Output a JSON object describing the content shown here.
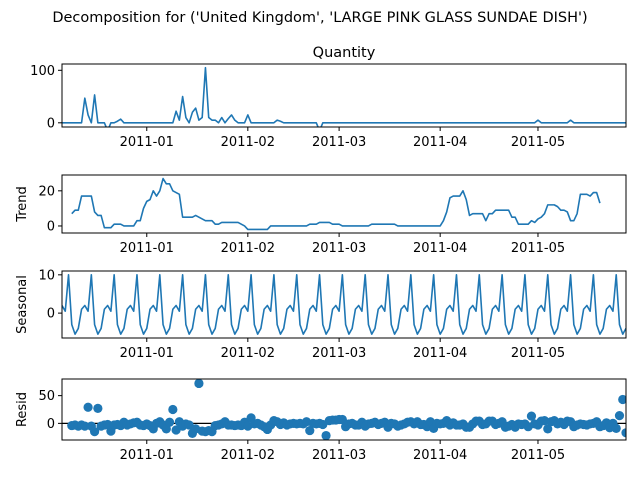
{
  "figure": {
    "title": "Decomposition for ('United Kingdom', 'LARGE PINK GLASS SUNDAE DISH')"
  },
  "colors": {
    "series": "#1f77b4",
    "axis": "#000000",
    "zero_line": "#000000"
  },
  "chart_data": [
    {
      "type": "line",
      "title": "Quantity",
      "ylabel": "",
      "xlim": [
        "2010-12-06",
        "2011-05-28"
      ],
      "ylim": [
        -8,
        112
      ],
      "yticks": [
        0,
        100
      ],
      "xticks": [
        "2011-01",
        "2011-02",
        "2011-03",
        "2011-04",
        "2011-05"
      ],
      "x_start": "2010-12-06",
      "values": [
        0,
        0,
        0,
        0,
        0,
        0,
        0,
        47,
        15,
        0,
        53,
        0,
        0,
        0,
        -15,
        0,
        0,
        3,
        7,
        0,
        0,
        0,
        0,
        0,
        0,
        0,
        0,
        0,
        0,
        0,
        0,
        0,
        0,
        0,
        0,
        22,
        5,
        50,
        10,
        0,
        20,
        28,
        5,
        10,
        105,
        10,
        5,
        5,
        0,
        10,
        0,
        8,
        15,
        5,
        0,
        0,
        0,
        15,
        0,
        0,
        0,
        0,
        0,
        0,
        0,
        0,
        5,
        3,
        0,
        0,
        0,
        0,
        0,
        0,
        0,
        0,
        0,
        0,
        0,
        -15,
        0,
        0,
        0,
        0,
        0,
        0,
        0,
        0,
        0,
        0,
        0,
        0,
        0,
        0,
        0,
        0,
        0,
        0,
        0,
        0,
        0,
        0,
        0,
        0,
        0,
        0,
        0,
        0,
        0,
        0,
        0,
        0,
        0,
        0,
        0,
        0,
        0,
        0,
        0,
        0,
        0,
        0,
        0,
        0,
        0,
        0,
        0,
        0,
        0,
        0,
        0,
        0,
        0,
        0,
        0,
        0,
        0,
        0,
        0,
        0,
        0,
        0,
        0,
        0,
        0,
        0,
        5,
        0,
        0,
        0,
        0,
        0,
        0,
        0,
        0,
        0,
        5,
        0,
        0,
        0,
        0,
        0,
        0,
        0,
        0,
        0,
        0,
        0,
        0,
        0,
        0,
        0,
        0,
        0,
        0,
        0,
        0,
        0,
        0,
        0,
        0,
        0,
        0,
        0,
        0,
        0,
        0,
        0,
        0,
        0,
        0,
        0,
        0,
        0,
        0,
        0,
        0,
        0,
        0,
        0,
        0,
        0,
        0,
        0,
        0,
        0,
        0,
        0,
        0,
        0,
        0,
        0,
        0,
        0,
        0,
        0,
        0,
        0,
        0,
        0,
        0,
        0,
        0,
        0,
        0,
        0,
        0,
        0,
        0,
        0,
        0,
        0,
        0,
        0,
        0,
        0,
        0,
        0,
        0,
        0,
        0,
        0,
        0,
        0,
        0,
        0,
        0,
        0,
        0,
        0,
        0,
        0,
        0,
        0,
        0,
        0,
        0,
        0,
        0,
        0,
        0,
        0,
        0,
        0,
        0,
        0,
        0,
        0,
        0,
        0,
        0,
        0
      ]
    },
    {
      "type": "line",
      "title": "",
      "ylabel": "Trend",
      "xlim": [
        "2010-12-06",
        "2011-05-28"
      ],
      "ylim": [
        -4,
        29
      ],
      "yticks": [
        0,
        20
      ],
      "xticks": [
        "2011-01",
        "2011-02",
        "2011-03",
        "2011-04",
        "2011-05"
      ],
      "x_start": "2010-12-09",
      "values": [
        7,
        9,
        9,
        17,
        17,
        17,
        17,
        8,
        6,
        6,
        -1,
        -1,
        -1,
        1,
        1,
        1,
        0,
        0,
        0,
        0,
        3,
        3,
        10,
        14,
        15,
        20,
        17,
        20,
        27,
        24,
        24,
        20,
        19,
        18,
        5,
        5,
        5,
        5,
        6,
        5,
        4,
        3,
        3,
        3,
        1,
        1,
        2,
        2,
        2,
        2,
        2,
        2,
        1,
        0,
        -2,
        -2,
        -2,
        -2,
        -2,
        -2,
        -2,
        0,
        0,
        0,
        0,
        0,
        0,
        0,
        0,
        0,
        0,
        0,
        0,
        1,
        1,
        1,
        2,
        2,
        2,
        2,
        1,
        1,
        1,
        0,
        0,
        0,
        0,
        0,
        0,
        0,
        0,
        0,
        1,
        1,
        1,
        1,
        1,
        1,
        1,
        1,
        0,
        0,
        0,
        0,
        0,
        0,
        0,
        0,
        0,
        0,
        0,
        0,
        0,
        0,
        3,
        8,
        16,
        17,
        17,
        17,
        20,
        15,
        6,
        7,
        7,
        7,
        7,
        3,
        7,
        7,
        9,
        9,
        9,
        9,
        9,
        5,
        5,
        1,
        1,
        1,
        1,
        3,
        2,
        4,
        5,
        7,
        12,
        12,
        12,
        11,
        9,
        9,
        8,
        3,
        3,
        7,
        18,
        18,
        18,
        17,
        19,
        19,
        13
      ]
    },
    {
      "type": "line",
      "title": "",
      "ylabel": "Seasonal",
      "xlim": [
        "2010-12-06",
        "2011-05-28"
      ],
      "ylim": [
        -6.5,
        11
      ],
      "yticks": [
        0,
        10
      ],
      "xticks": [
        "2011-01",
        "2011-02",
        "2011-03",
        "2011-04",
        "2011-05"
      ],
      "x_start": "2010-12-06",
      "period": 7,
      "pattern": [
        2,
        0.5,
        10,
        -3,
        -5.5,
        -4,
        1
      ]
    },
    {
      "type": "scatter",
      "title": "",
      "ylabel": "Resid",
      "xlim": [
        "2010-12-06",
        "2011-05-28"
      ],
      "ylim": [
        -30,
        80
      ],
      "yticks": [
        0,
        50
      ],
      "xticks": [
        "2011-01",
        "2011-02",
        "2011-03",
        "2011-04",
        "2011-05"
      ],
      "x_start": "2010-12-09",
      "zero_line": true,
      "values": [
        -4,
        -3,
        -5,
        -3,
        -5,
        29,
        -5,
        -15,
        27,
        -5,
        -3,
        -2,
        -14,
        -3,
        -2,
        -4,
        2,
        -3,
        -1,
        1,
        2,
        -3,
        -4,
        -1,
        -4,
        -10,
        0,
        3,
        -3,
        -10,
        2,
        25,
        -12,
        3,
        -5,
        -1,
        -3,
        -18,
        -10,
        72,
        -14,
        -15,
        -13,
        -15,
        -4,
        -3,
        -1,
        3,
        -3,
        -3,
        -4,
        -3,
        -4,
        2,
        -5,
        10,
        -1,
        0,
        -3,
        -6,
        -11,
        -3,
        5,
        3,
        -2,
        1,
        -3,
        -1,
        0,
        -1,
        0,
        -1,
        3,
        -13,
        0,
        -1,
        0,
        -2,
        -22,
        5,
        6,
        6,
        7,
        7,
        -6,
        -1,
        0,
        -3,
        -3,
        2,
        -5,
        -1,
        0,
        2,
        -2,
        0,
        2,
        -7,
        0,
        -1,
        -5,
        -3,
        -1,
        2,
        3,
        -1,
        3,
        -2,
        -2,
        -6,
        3,
        -9,
        0,
        -1,
        0,
        5,
        -3,
        1,
        -3,
        -3,
        -1,
        -7,
        -7,
        -1,
        4,
        4,
        -2,
        -1,
        4,
        4,
        -2,
        0,
        3,
        -7,
        -5,
        -2,
        -7,
        -1,
        -2,
        -1,
        -6,
        13,
        -1,
        -3,
        4,
        5,
        -10,
        3,
        5,
        -1,
        2,
        -2,
        4,
        3,
        -6,
        -3,
        -1,
        -2,
        -3,
        -1,
        0,
        3,
        -6,
        -4,
        1,
        -8,
        0,
        -9,
        14,
        43,
        -17,
        -17,
        -12,
        -10,
        23,
        -8,
        -2,
        0,
        -8,
        -1,
        2,
        -2,
        0,
        -1,
        -3,
        20,
        6,
        -4,
        11,
        -5,
        -5,
        -2,
        -4,
        -3,
        -3,
        -10,
        0,
        2,
        -1,
        -2,
        -1,
        -2,
        -3,
        -6,
        2,
        -2,
        -2,
        -3,
        3,
        0,
        -2,
        -2,
        -3,
        -1,
        7,
        3,
        2,
        -11,
        -1,
        2,
        4,
        5,
        4,
        -3,
        -8,
        -10,
        -14,
        -15,
        -4,
        -19,
        -4,
        19,
        45,
        -18,
        -15,
        -12,
        -10
      ]
    }
  ]
}
